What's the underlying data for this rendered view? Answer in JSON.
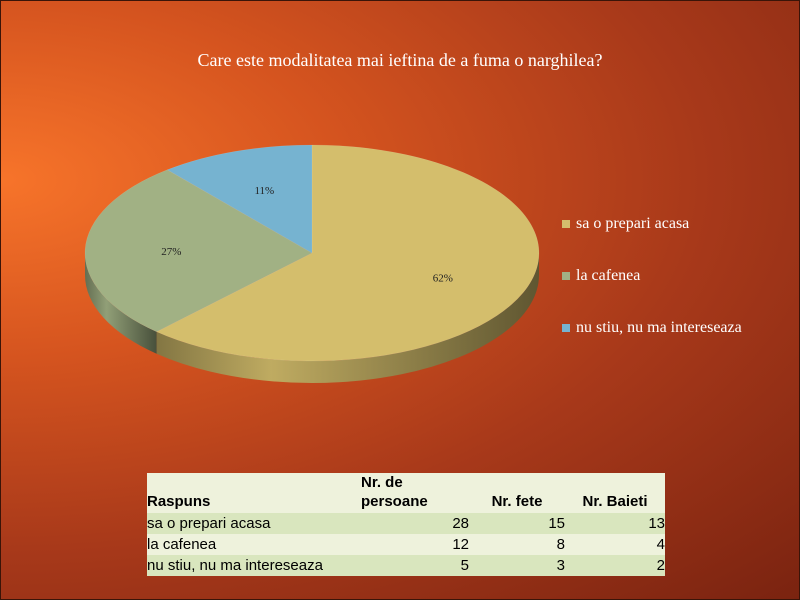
{
  "chart_data": {
    "type": "pie",
    "title": "Care este modalitatea mai ieftina de a fuma o narghilea?",
    "categories": [
      "sa o prepari acasa",
      "la cafenea",
      "nu stiu, nu ma intereseaza"
    ],
    "values": [
      62,
      27,
      11
    ],
    "data_labels": [
      "62%",
      "27%",
      "11%"
    ],
    "colors": [
      "#d4be6c",
      "#a1b184",
      "#76b3d0"
    ],
    "legend_placement": "right",
    "style": "3d"
  },
  "table": {
    "headers": [
      "Raspuns",
      "Nr. de persoane",
      "Nr. fete",
      "Nr. Baieti"
    ],
    "rows": [
      [
        "sa o prepari acasa",
        "28",
        "15",
        "13"
      ],
      [
        "la cafenea",
        "12",
        "8",
        "4"
      ],
      [
        "nu stiu, nu ma intereseaza",
        "5",
        "3",
        "2"
      ]
    ]
  }
}
